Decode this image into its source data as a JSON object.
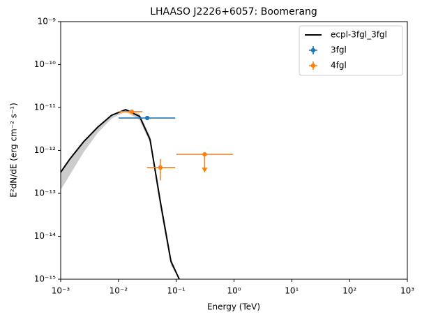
{
  "chart_data": {
    "type": "line",
    "title": "LHAASO J2226+6057: Boomerang",
    "x_label": "Energy (TeV)",
    "y_label": "E²dN/dE (erg cm⁻² s⁻¹)",
    "x_log": true,
    "y_log": true,
    "xlim": [
      0.001,
      1000
    ],
    "ylim": [
      1e-15,
      1e-09
    ],
    "xticks": [
      {
        "value": 0.001,
        "label": "10⁻³"
      },
      {
        "value": 0.01,
        "label": "10⁻²"
      },
      {
        "value": 0.1,
        "label": "10⁻¹"
      },
      {
        "value": 1,
        "label": "10⁰"
      },
      {
        "value": 10,
        "label": "10¹"
      },
      {
        "value": 100,
        "label": "10²"
      },
      {
        "value": 1000,
        "label": "10³"
      }
    ],
    "yticks": [
      {
        "value": 1e-15,
        "label": "10⁻¹⁵"
      },
      {
        "value": 1e-14,
        "label": "10⁻¹⁴"
      },
      {
        "value": 1e-13,
        "label": "10⁻¹³"
      },
      {
        "value": 1e-12,
        "label": "10⁻¹²"
      },
      {
        "value": 1e-11,
        "label": "10⁻¹¹"
      },
      {
        "value": 1e-10,
        "label": "10⁻¹⁰"
      },
      {
        "value": 1e-09,
        "label": "10⁻⁹"
      }
    ],
    "legend": "upper right",
    "series": [
      {
        "name": "ecpl-3fgl_3fgl",
        "type": "line",
        "color": "#000000",
        "band_color": "#cccccc",
        "x": [
          0.001,
          0.00144,
          0.0025,
          0.0044,
          0.0076,
          0.0133,
          0.0232,
          0.0352,
          0.0533,
          0.081,
          0.113
        ],
        "values": [
          3.1e-13,
          6.3e-13,
          1.6e-12,
          3.5e-12,
          6.6e-12,
          8.9e-12,
          6.2e-12,
          1.8e-12,
          6.2e-14,
          2.6e-15,
          1e-15
        ],
        "upper": [
          3.1e-13,
          6.3e-13,
          1.6e-12,
          3.5e-12,
          6.6e-12,
          9.3e-12,
          7.1e-12,
          2.2e-12,
          7.4e-14,
          3.1e-15,
          1e-15
        ],
        "lower": [
          1.2e-13,
          2.7e-13,
          9.1e-13,
          2.6e-12,
          5.5e-12,
          8e-12,
          5.1e-12,
          1.5e-12,
          4.2e-14,
          2.1e-15,
          1e-15
        ]
      },
      {
        "name": "3fgl",
        "type": "errorbar",
        "color": "#1f77b4",
        "x": [
          0.0315
        ],
        "values": [
          5.7e-12
        ],
        "x_lower": [
          0.01
        ],
        "x_upper": [
          0.096
        ],
        "y_lower": [
          null
        ],
        "y_upper": [
          null
        ],
        "upper_limit": [
          false
        ]
      },
      {
        "name": "4fgl",
        "type": "errorbar",
        "color": "#ff7f0e",
        "x": [
          0.017,
          0.053,
          0.31
        ],
        "values": [
          8e-12,
          4e-13,
          8.1e-13
        ],
        "x_lower": [
          0.01,
          0.031,
          0.1
        ],
        "x_upper": [
          0.026,
          0.096,
          0.96
        ],
        "y_lower": [
          null,
          2e-13,
          null
        ],
        "y_upper": [
          null,
          6.3e-13,
          null
        ],
        "upper_limit": [
          false,
          false,
          true
        ]
      }
    ]
  }
}
